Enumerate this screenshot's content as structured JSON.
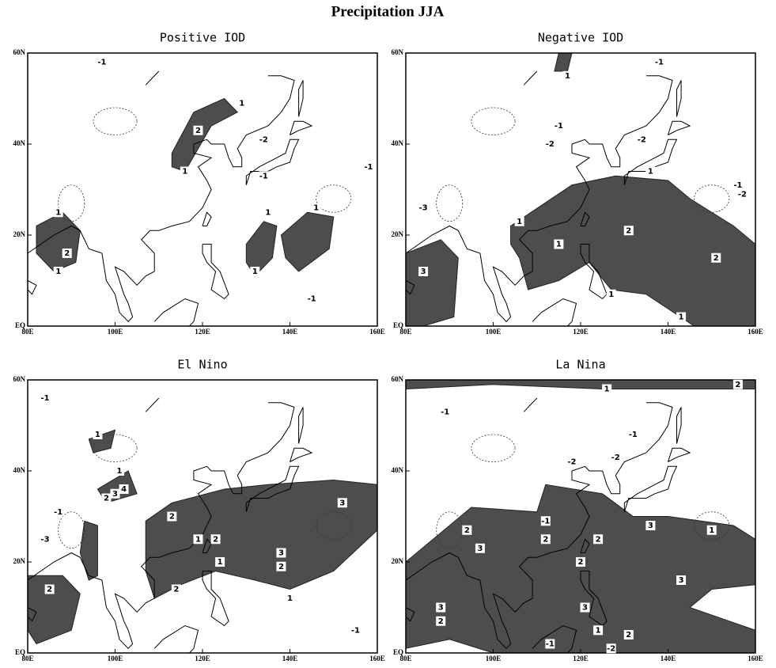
{
  "title": "Precipitation JJA",
  "lat_ticks": [
    {
      "value": 0,
      "label": "EQ"
    },
    {
      "value": 20,
      "label": "20N"
    },
    {
      "value": 40,
      "label": "40N"
    },
    {
      "value": 60,
      "label": "60N"
    }
  ],
  "lon_ticks": [
    {
      "value": 80,
      "label": "80E"
    },
    {
      "value": 100,
      "label": "100E"
    },
    {
      "value": 120,
      "label": "120E"
    },
    {
      "value": 140,
      "label": "140E"
    },
    {
      "value": 160,
      "label": "160E"
    }
  ],
  "panels": [
    {
      "title": "Positive IOD",
      "contour_labels": [
        -1,
        1,
        2,
        1,
        -2,
        -1,
        -1,
        1,
        2,
        1,
        1,
        1,
        1,
        -1
      ]
    },
    {
      "title": "Negative IOD",
      "contour_labels": [
        1,
        -1,
        -1,
        -2,
        -2,
        1,
        -1,
        -2,
        1,
        2,
        2,
        3,
        1,
        1,
        1,
        -3
      ]
    },
    {
      "title": "El Nino",
      "contour_labels": [
        -1,
        1,
        1,
        2,
        3,
        4,
        -1,
        -3,
        2,
        2,
        1,
        1,
        3,
        2,
        2,
        3,
        1,
        2,
        -1
      ]
    },
    {
      "title": "La Nina",
      "contour_labels": [
        1,
        2,
        -1,
        -1,
        -2,
        -2,
        -1,
        2,
        2,
        3,
        3,
        2,
        1,
        2,
        3,
        3,
        2,
        1,
        2,
        3,
        -1,
        -2
      ]
    }
  ]
}
